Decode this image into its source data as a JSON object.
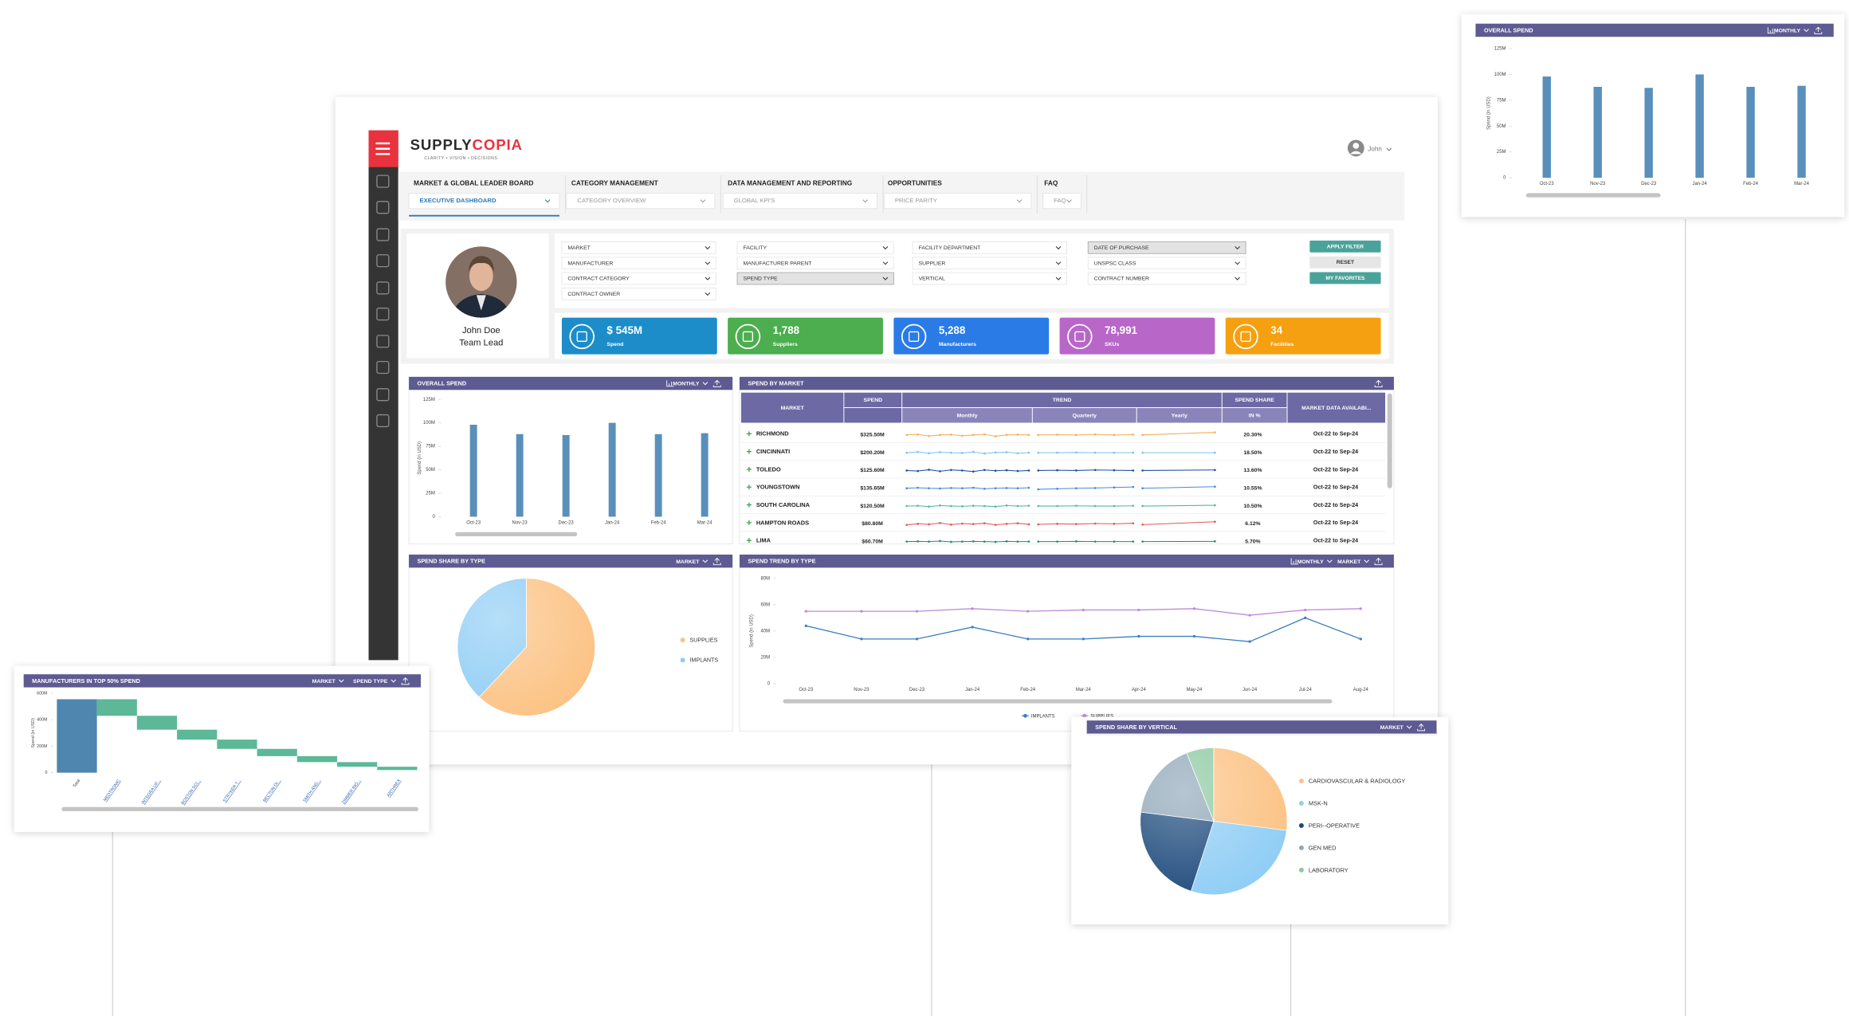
{
  "logo": [
    "SUPPLY",
    "COPIA"
  ],
  "tagline": "CLARITY • VISION • DECISIONS",
  "user": "John",
  "nav": [
    {
      "title": "MARKET & GLOBAL LEADER BOARD",
      "selected": "EXECUTIVE DASHBOARD"
    },
    {
      "title": "CATEGORY MANAGEMENT",
      "selected": "CATEGORY OVERVIEW"
    },
    {
      "title": "DATA MANAGEMENT AND REPORTING",
      "selected": "GLOBAL KPI'S"
    },
    {
      "title": "OPPORTUNITIES",
      "selected": "PRICE PARITY"
    },
    {
      "title": "FAQ",
      "selected": "FAQ"
    }
  ],
  "profile": {
    "name": "John Doe",
    "role": "Team Lead"
  },
  "filters": [
    [
      "MARKET",
      "MANUFACTURER",
      "CONTRACT CATEGORY",
      "CONTRACT OWNER"
    ],
    [
      "FACILITY",
      "MANUFACTURER PARENT",
      "SPEND TYPE"
    ],
    [
      "FACILITY DEPARTMENT",
      "SUPPLIER",
      "VERTICAL"
    ],
    [
      "DATE OF PURCHASE",
      "UNSPSC CLASS",
      "CONTRACT NUMBER"
    ]
  ],
  "buttons": [
    "APPLY FILTER",
    "RESET",
    "MY FAVORITES"
  ],
  "kpis": [
    {
      "value": "$ 545M",
      "label": "Spend",
      "color": "#1c8dc8"
    },
    {
      "value": "1,788",
      "label": "Suppliers",
      "color": "#4cae4f"
    },
    {
      "value": "5,288",
      "label": "Manufacturers",
      "color": "#2a7be6"
    },
    {
      "value": "78,991",
      "label": "SKUs",
      "color": "#b866c8"
    },
    {
      "value": "34",
      "label": "Facilities",
      "color": "#f5a010"
    }
  ],
  "spend_by_market": {
    "title": "SPEND BY MARKET",
    "columns": {
      "market": "MARKET",
      "spend": "SPEND",
      "trend": "TREND",
      "monthly": "Monthly",
      "quarterly": "Quarterly",
      "yearly": "Yearly",
      "share": "SPEND SHARE",
      "share_unit": "IN %",
      "availability": "MARKET DATA AVAILABI..."
    },
    "rows": [
      {
        "market": "RICHMOND",
        "spend": "$325.50M",
        "share": "20.30%",
        "availability": "Oct-22 to Sep-24",
        "color": "#f5b05a",
        "trend": {
          "monthly": [
            5,
            5.2,
            4.6,
            5,
            5.1,
            4.7,
            5,
            5.2,
            4.5,
            5,
            5.1,
            5
          ],
          "quarterly": [
            5,
            5.1,
            5,
            5.2,
            5,
            5.1
          ],
          "yearly": [
            5,
            6
          ]
        }
      },
      {
        "market": "CINCINNATI",
        "spend": "$200.20M",
        "share": "18.50%",
        "availability": "Oct-22 to Sep-24",
        "color": "#7cc3ee",
        "trend": {
          "monthly": [
            5,
            5.3,
            4.8,
            5.2,
            5,
            4.9,
            5.3,
            4.7,
            5.1,
            5.2,
            4.8,
            5
          ],
          "quarterly": [
            5,
            5,
            5.1,
            5,
            5,
            5
          ],
          "yearly": [
            5,
            5
          ]
        }
      },
      {
        "market": "TOLEDO",
        "spend": "$125.60M",
        "share": "13.60%",
        "availability": "Oct-22 to Sep-24",
        "color": "#1f4e9c",
        "trend": {
          "monthly": [
            5,
            4.8,
            5.3,
            4.7,
            5.2,
            5,
            4.6,
            5.2,
            4.9,
            5.1,
            4.8,
            5
          ],
          "quarterly": [
            5,
            5.1,
            5,
            5.2,
            5.1,
            5
          ],
          "yearly": [
            5,
            5.2
          ]
        }
      },
      {
        "market": "YOUNGSTOWN",
        "spend": "$135.65M",
        "share": "10.55%",
        "availability": "Oct-22 to Sep-24",
        "color": "#4b8ad8",
        "trend": {
          "monthly": [
            5,
            5.2,
            5,
            4.9,
            5.1,
            5,
            5.2,
            4.8,
            5,
            5.1,
            5,
            5.2
          ],
          "quarterly": [
            4.6,
            4.8,
            5,
            5.1,
            5.3,
            5.5
          ],
          "yearly": [
            5,
            5.6
          ]
        }
      },
      {
        "market": "SOUTH CAROLINA",
        "spend": "$120.50M",
        "share": "10.50%",
        "availability": "Oct-22 to Sep-24",
        "color": "#56b8a8",
        "trend": {
          "monthly": [
            5,
            5.1,
            4.8,
            5.2,
            5,
            4.9,
            5.1,
            5,
            4.8,
            5.2,
            5,
            5.1
          ],
          "quarterly": [
            5,
            5,
            5.1,
            5,
            5,
            5.1
          ],
          "yearly": [
            5,
            5.3
          ]
        }
      },
      {
        "market": "HAMPTON ROADS",
        "spend": "$80.80M",
        "share": "6.12%",
        "availability": "Oct-22 to Sep-24",
        "color": "#e05757",
        "trend": {
          "monthly": [
            4.6,
            5,
            4.8,
            5.3,
            4.7,
            5.1,
            4.9,
            5.2,
            4.6,
            5,
            5.2,
            4.8
          ],
          "quarterly": [
            4.8,
            5,
            4.9,
            5.1,
            5,
            5.2
          ],
          "yearly": [
            4.7,
            5.8
          ]
        }
      },
      {
        "market": "LIMA",
        "spend": "$60.70M",
        "share": "5.70%",
        "availability": "Oct-22 to Sep-24",
        "color": "#1f8a7a",
        "trend": {
          "monthly": [
            5,
            5.1,
            5,
            5.2,
            4.9,
            5,
            5.1,
            5,
            4.9,
            5.1,
            5,
            5
          ],
          "quarterly": [
            5,
            5,
            5.1,
            5,
            5,
            5
          ],
          "yearly": [
            5,
            5.1
          ]
        }
      }
    ]
  },
  "chart_data": [
    {
      "type": "bar",
      "title": "OVERALL SPEND",
      "controls": [
        "MONTHLY"
      ],
      "y_label": "Spend (in USD)",
      "categories": [
        "Oct-23",
        "Nov-23",
        "Dec-23",
        "Jan-24",
        "Feb-24",
        "Mar-24"
      ],
      "values": [
        98000000,
        88000000,
        87000000,
        100000000,
        88000000,
        89000000
      ],
      "color": "#5a8fbb",
      "ylim": [
        0,
        125000000
      ],
      "yticks": [
        0,
        {
          "value": 25000000,
          "label": "25M"
        },
        {
          "value": 50000000,
          "label": "50M"
        },
        {
          "value": 75000000,
          "label": "75M"
        },
        {
          "value": 100000000,
          "label": "100M"
        },
        {
          "value": 125000000,
          "label": "125M"
        }
      ]
    },
    {
      "type": "pie",
      "title": "SPEND SHARE BY TYPE",
      "controls": [
        "MARKET"
      ],
      "categories": [
        "SUPPLIES",
        "IMPLANTS"
      ],
      "values": [
        62,
        38
      ],
      "colors": [
        "#fcc283",
        "#8fcdf5"
      ]
    },
    {
      "type": "line",
      "title": "SPEND TREND BY TYPE",
      "controls": [
        "MONTHLY",
        "MARKET"
      ],
      "y_label": "Spend (in USD)",
      "categories": [
        "Oct-23",
        "Nov-23",
        "Dec-23",
        "Jan-24",
        "Feb-24",
        "Mar-24",
        "Apr-24",
        "May-24",
        "Jun-24",
        "Jul-24",
        "Aug-24"
      ],
      "series": [
        {
          "name": "IMPLANTS",
          "color": "#3b7fc0",
          "values": [
            44000000,
            34000000,
            34000000,
            43000000,
            34000000,
            34000000,
            36000000,
            36000000,
            32000000,
            50000000,
            34000000
          ]
        },
        {
          "name": "SUPPLIES",
          "color": "#c08ad8",
          "values": [
            55000000,
            55000000,
            55000000,
            57000000,
            55000000,
            56000000,
            56000000,
            57000000,
            52000000,
            56000000,
            57000000
          ]
        }
      ],
      "ylim": [
        0,
        80000000
      ],
      "yticks": [
        0,
        {
          "value": 20000000,
          "label": "20M"
        },
        {
          "value": 40000000,
          "label": "40M"
        },
        {
          "value": 60000000,
          "label": "60M"
        },
        {
          "value": 80000000,
          "label": "80M"
        }
      ]
    },
    {
      "type": "waterfall",
      "title": "MANUFACTURERS IN TOP 50% SPEND",
      "controls": [
        "MARKET",
        "SPEND TYPE"
      ],
      "y_label": "Spend (in USD)",
      "categories": [
        "Total",
        "MEDTRONIC",
        "INTEGRA LIF...",
        "BOSTON SCI...",
        "STRYKER T...",
        "BECTON DI...",
        "SMITH AND...",
        "ZIMMER BIO...",
        "ARTHREX"
      ],
      "values": [
        555000000,
        125000000,
        105000000,
        75000000,
        70000000,
        55000000,
        45000000,
        35000000,
        25000000
      ],
      "colors": [
        "#4f86b0",
        "#5cb897"
      ],
      "ylim": [
        0,
        600000000
      ],
      "yticks": [
        0,
        {
          "value": 200000000,
          "label": "200M"
        },
        {
          "value": 400000000,
          "label": "400M"
        },
        {
          "value": 600000000,
          "label": "600M"
        }
      ]
    },
    {
      "type": "pie",
      "title": "SPEND SHARE BY VERTICAL",
      "controls": [
        "MARKET"
      ],
      "categories": [
        "CARDIOVASCULAR & RADIOLOGY",
        "MSK-N",
        "PERI--OPERATIVE",
        "GEN MED",
        "LABORATORY"
      ],
      "values": [
        27,
        28,
        22,
        17,
        6
      ],
      "colors": [
        "#fcc283",
        "#8fcdf5",
        "#1d4a7c",
        "#8fa6b8",
        "#8cc9a0"
      ]
    }
  ]
}
